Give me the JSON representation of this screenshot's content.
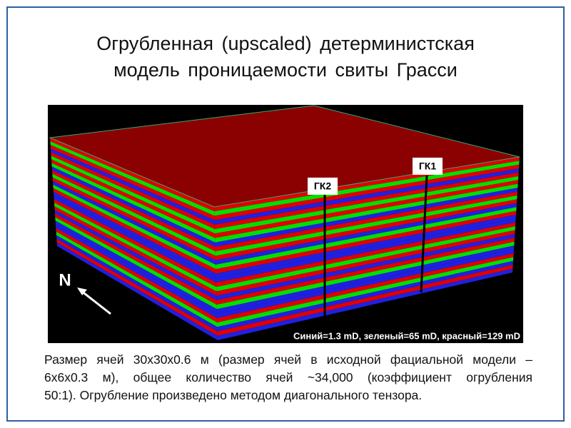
{
  "title": {
    "lines": [
      "Огрубленная (upscaled) детерминистская",
      "модель проницаемости свиты Грасси"
    ]
  },
  "image": {
    "wells": [
      "ГК2",
      "ГК1"
    ],
    "north": "N",
    "legend": "Синий=1.3 mD, зеленый=65 mD, красный=129 mD"
  },
  "description": {
    "lines": [
      "Размер ячей 30x30x0.6 м (размер ячей в исходной фациальной модели –",
      "6x6x0.3 м), общее количество ячей ~34,000 (коэффициент огрубления",
      "50:1). Огрубление произведено методом диагонального тензора."
    ]
  }
}
